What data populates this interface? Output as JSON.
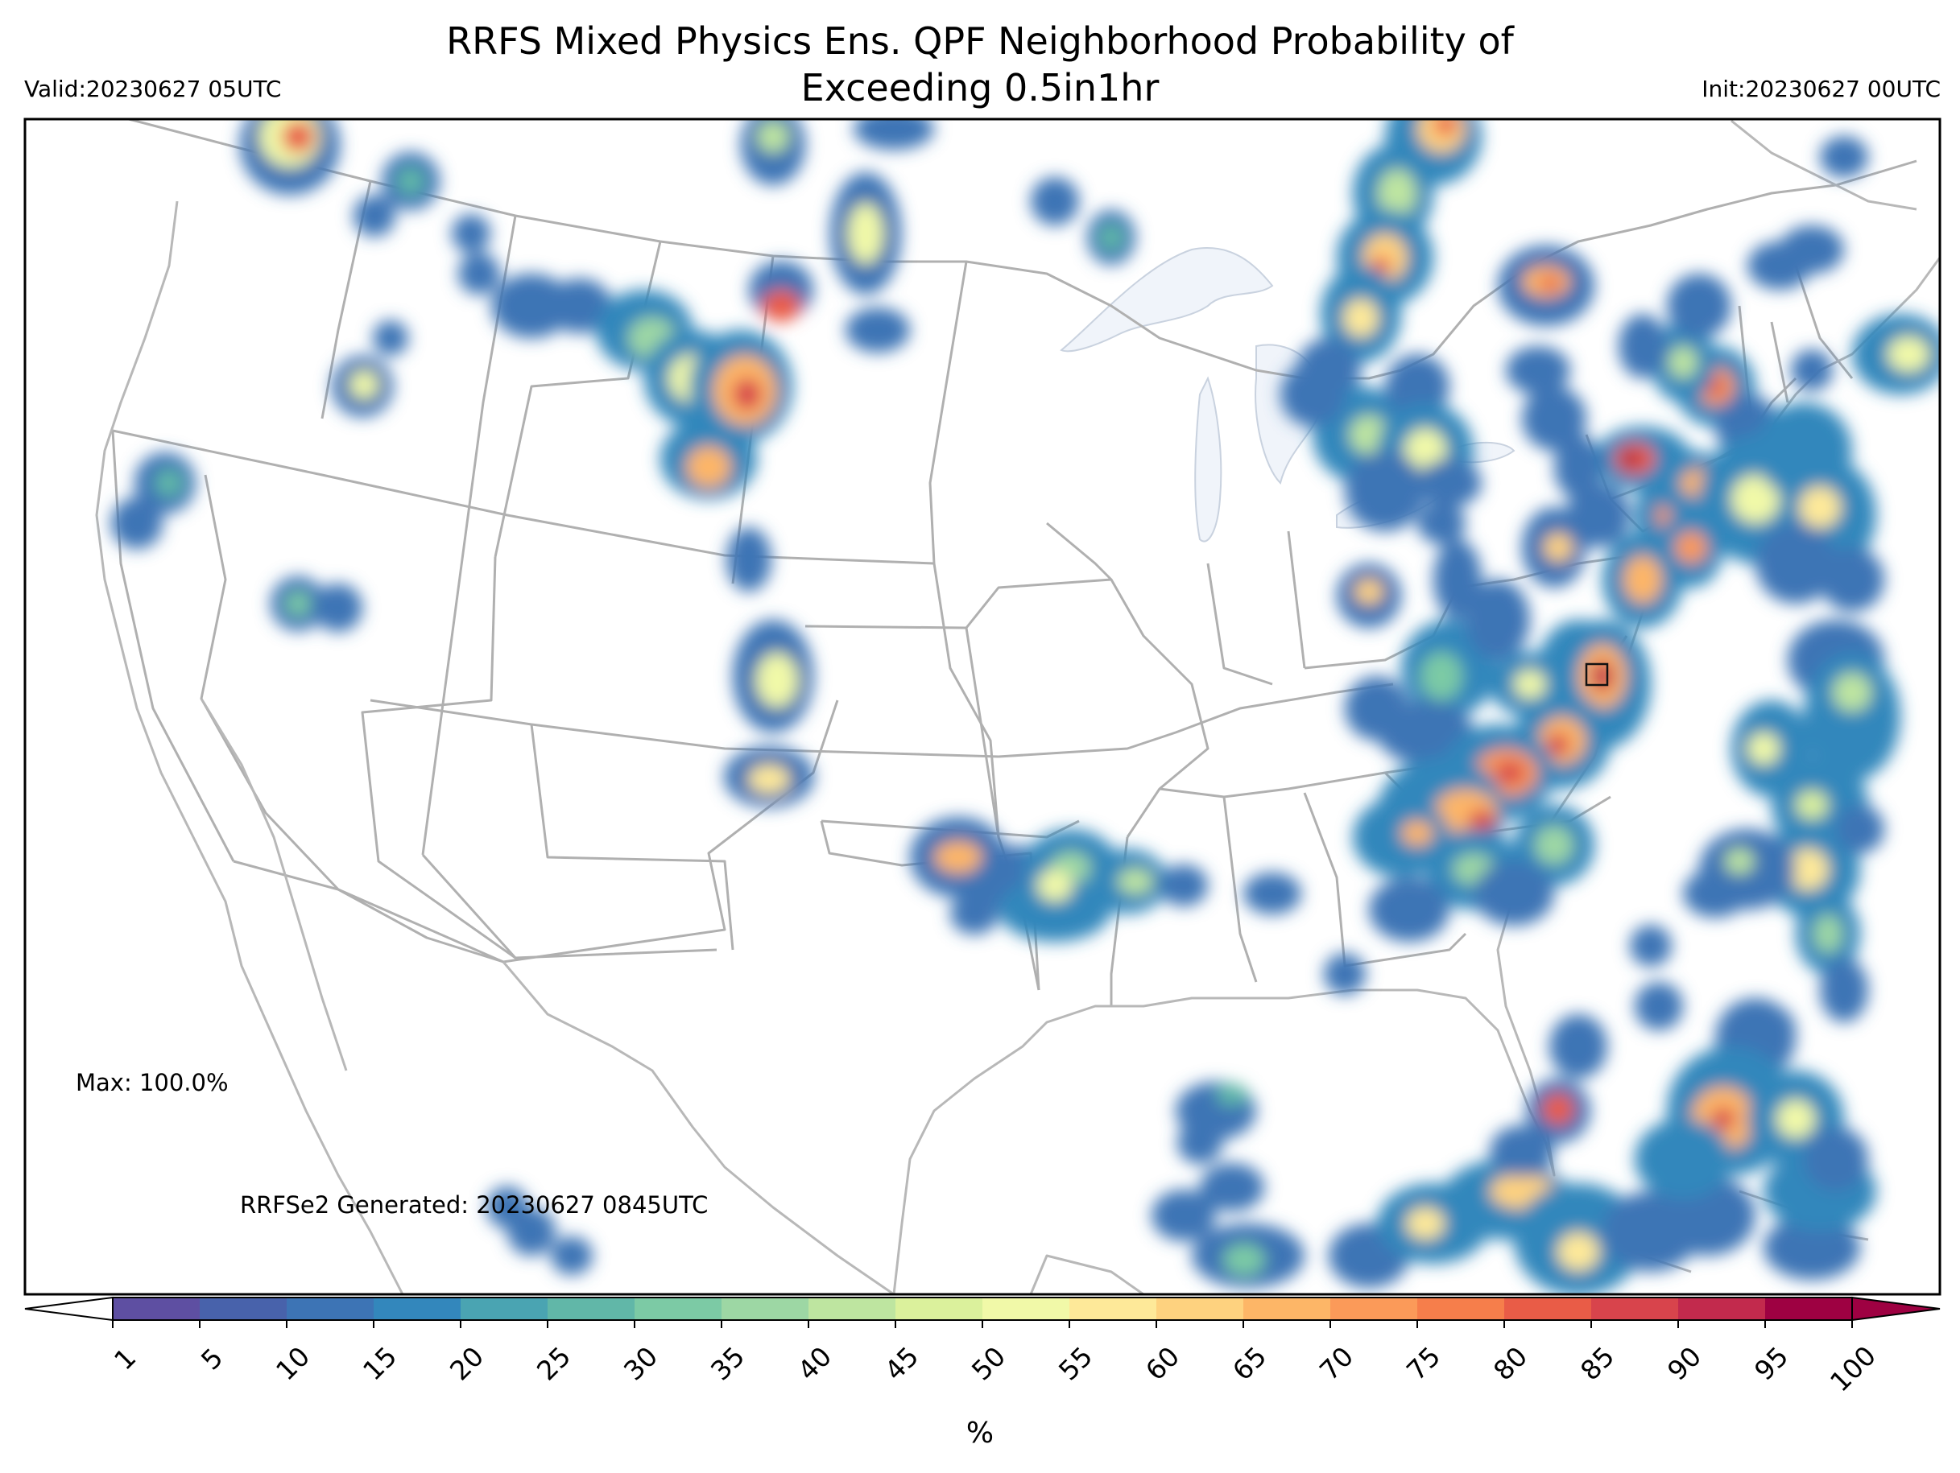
{
  "header": {
    "title_line1": "RRFS Mixed Physics Ens. QPF Neighborhood Probability of",
    "title_line2": "Exceeding 0.5in1hr",
    "valid": "Valid:20230627 05UTC",
    "init": "Init:20230627 00UTC"
  },
  "annotations": {
    "max": "Max: 100.0%",
    "generated": "RRFSe2 Generated: 20230627 0845UTC"
  },
  "colorbar": {
    "label": "%",
    "ticks": [
      "1",
      "5",
      "10",
      "15",
      "20",
      "25",
      "30",
      "35",
      "40",
      "45",
      "50",
      "55",
      "60",
      "65",
      "70",
      "75",
      "80",
      "85",
      "90",
      "95",
      "100"
    ],
    "colors": [
      "#5e4fa2",
      "#4862ab",
      "#3d74b5",
      "#3387bc",
      "#4aa4b2",
      "#61b7a8",
      "#7ccaa5",
      "#9dd7a4",
      "#bee5a0",
      "#dbf19c",
      "#f1f9a8",
      "#fee999",
      "#fed27f",
      "#fdb667",
      "#fb9a59",
      "#f67e4b",
      "#e95c47",
      "#d8444c",
      "#c22a4d",
      "#9e0142"
    ]
  },
  "map": {
    "projection": "Lambert conformal CONUS",
    "colors": {
      "border": "#b0b0b0",
      "lake": "#f0f4fa"
    }
  }
}
